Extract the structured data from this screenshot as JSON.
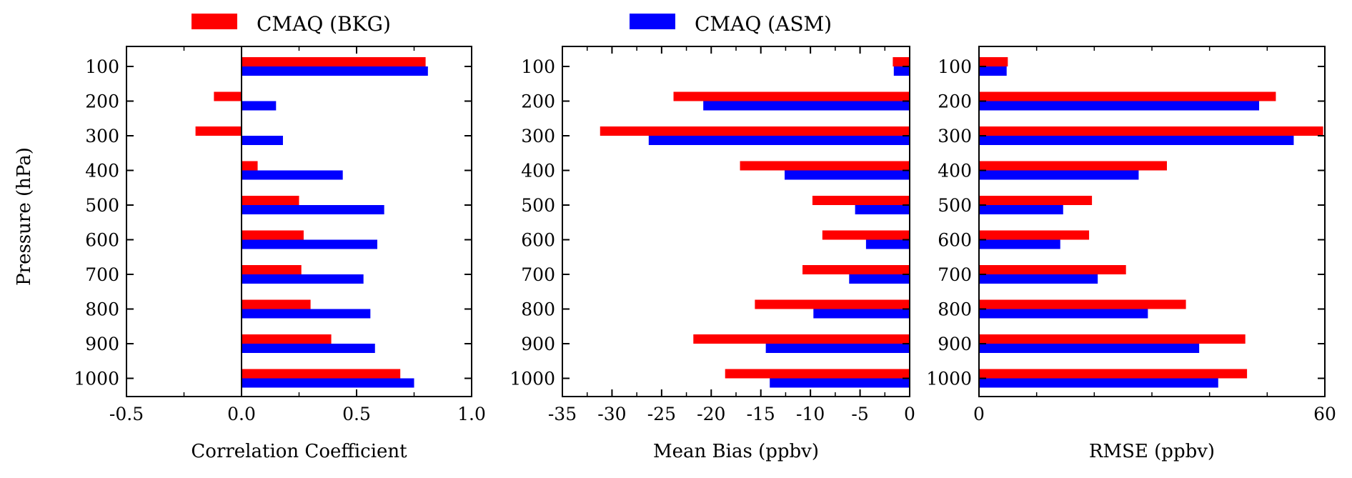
{
  "legend": [
    {
      "name": "CMAQ (BKG)",
      "color": "#ff0000"
    },
    {
      "name": "CMAQ (ASM)",
      "color": "#0000ff"
    }
  ],
  "ylabel": "Pressure (hPa)",
  "chart_data": [
    {
      "type": "bar",
      "orientation": "horizontal",
      "categories": [
        "100",
        "200",
        "300",
        "400",
        "500",
        "600",
        "700",
        "800",
        "900",
        "1000"
      ],
      "xlabel": "Correlation Coefficient",
      "ylabel": "Pressure (hPa)",
      "xlim": [
        -0.5,
        1.0
      ],
      "xticks": [
        "-0.5",
        "0.0",
        "0.5",
        "1.0"
      ],
      "series": [
        {
          "name": "CMAQ (BKG)",
          "color": "#ff0000",
          "values": [
            0.8,
            -0.12,
            -0.2,
            0.07,
            0.25,
            0.27,
            0.26,
            0.3,
            0.39,
            0.69
          ]
        },
        {
          "name": "CMAQ (ASM)",
          "color": "#0000ff",
          "values": [
            0.81,
            0.15,
            0.18,
            0.44,
            0.62,
            0.59,
            0.53,
            0.56,
            0.58,
            0.75
          ]
        }
      ]
    },
    {
      "type": "bar",
      "orientation": "horizontal",
      "categories": [
        "100",
        "200",
        "300",
        "400",
        "500",
        "600",
        "700",
        "800",
        "900",
        "1000"
      ],
      "xlabel": "Mean Bias (ppbv)",
      "xlim": [
        -35,
        0
      ],
      "xticks": [
        "-35",
        "-30",
        "-25",
        "-20",
        "-15",
        "-10",
        "-5",
        "0"
      ],
      "series": [
        {
          "name": "CMAQ (BKG)",
          "color": "#ff0000",
          "values": [
            -1.7,
            -23.8,
            -31.2,
            -17.1,
            -9.8,
            -8.8,
            -10.8,
            -15.6,
            -21.8,
            -18.6
          ]
        },
        {
          "name": "CMAQ (ASM)",
          "color": "#0000ff",
          "values": [
            -1.6,
            -20.8,
            -26.3,
            -12.6,
            -5.5,
            -4.4,
            -6.1,
            -9.7,
            -14.5,
            -14.1
          ]
        }
      ]
    },
    {
      "type": "bar",
      "orientation": "horizontal",
      "categories": [
        "100",
        "200",
        "300",
        "400",
        "500",
        "600",
        "700",
        "800",
        "900",
        "1000"
      ],
      "xlabel": "RMSE (ppbv)",
      "xlim": [
        0,
        60
      ],
      "xticks": [
        "0",
        "60"
      ],
      "series": [
        {
          "name": "CMAQ (BKG)",
          "color": "#ff0000",
          "values": [
            5.0,
            51.5,
            59.7,
            32.6,
            19.6,
            19.1,
            25.5,
            35.9,
            46.2,
            46.5
          ]
        },
        {
          "name": "CMAQ (ASM)",
          "color": "#0000ff",
          "values": [
            4.8,
            48.6,
            54.6,
            27.7,
            14.6,
            14.1,
            20.6,
            29.3,
            38.2,
            41.5
          ]
        }
      ]
    }
  ]
}
